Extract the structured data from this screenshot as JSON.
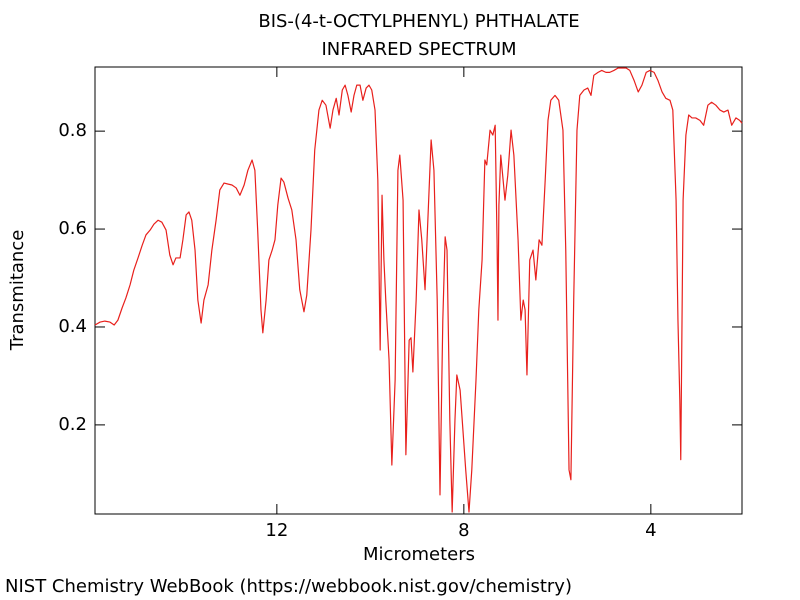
{
  "chart_data": {
    "type": "line",
    "title": "BIS-(4-t-OCTYLPHENYL) PHTHALATE",
    "subtitle": "INFRARED SPECTRUM",
    "xlabel": "Micrometers",
    "ylabel": "Transmitance",
    "source": "NIST Chemistry WebBook (https://webbook.nist.gov/chemistry)",
    "color": "#e8201c",
    "xlim": [
      15.89,
      2.05
    ],
    "ylim": [
      0.018,
      0.931
    ],
    "xticks": [
      12,
      8,
      4
    ],
    "yticks": [
      0.2,
      0.4,
      0.6,
      0.8
    ],
    "grid": false,
    "x": [
      15.89,
      15.78,
      15.68,
      15.57,
      15.48,
      15.4,
      15.31,
      15.23,
      15.14,
      15.06,
      14.97,
      14.88,
      14.8,
      14.71,
      14.63,
      14.54,
      14.46,
      14.37,
      14.29,
      14.22,
      14.16,
      14.07,
      14.01,
      13.94,
      13.88,
      13.82,
      13.75,
      13.69,
      13.62,
      13.56,
      13.47,
      13.39,
      13.3,
      13.22,
      13.13,
      13.05,
      12.96,
      12.87,
      12.79,
      12.7,
      12.62,
      12.53,
      12.47,
      12.41,
      12.34,
      12.3,
      12.23,
      12.17,
      12.1,
      12.04,
      11.98,
      11.91,
      11.85,
      11.76,
      11.68,
      11.59,
      11.51,
      11.42,
      11.36,
      11.27,
      11.19,
      11.1,
      11.03,
      10.95,
      10.86,
      10.8,
      10.73,
      10.67,
      10.6,
      10.54,
      10.48,
      10.41,
      10.35,
      10.29,
      10.22,
      10.16,
      10.09,
      10.03,
      9.97,
      9.9,
      9.84,
      9.79,
      9.75,
      9.71,
      9.67,
      9.6,
      9.54,
      9.47,
      9.41,
      9.37,
      9.3,
      9.24,
      9.17,
      9.13,
      9.09,
      9.02,
      8.96,
      8.9,
      8.83,
      8.77,
      8.7,
      8.64,
      8.57,
      8.51,
      8.45,
      8.4,
      8.36,
      8.3,
      8.25,
      8.19,
      8.15,
      8.08,
      8.02,
      7.96,
      7.89,
      7.83,
      7.74,
      7.68,
      7.61,
      7.55,
      7.51,
      7.44,
      7.38,
      7.33,
      7.29,
      7.27,
      7.25,
      7.21,
      7.16,
      7.12,
      7.06,
      6.99,
      6.93,
      6.84,
      6.78,
      6.73,
      6.69,
      6.65,
      6.59,
      6.52,
      6.46,
      6.39,
      6.33,
      6.26,
      6.2,
      6.14,
      6.05,
      5.97,
      5.88,
      5.82,
      5.75,
      5.71,
      5.65,
      5.58,
      5.52,
      5.43,
      5.35,
      5.28,
      5.22,
      5.13,
      5.05,
      4.96,
      4.88,
      4.79,
      4.7,
      4.62,
      4.53,
      4.45,
      4.36,
      4.27,
      4.19,
      4.1,
      4.02,
      3.93,
      3.85,
      3.76,
      3.68,
      3.59,
      3.53,
      3.46,
      3.42,
      3.38,
      3.36,
      3.31,
      3.25,
      3.19,
      3.12,
      3.04,
      2.95,
      2.87,
      2.78,
      2.7,
      2.61,
      2.52,
      2.44,
      2.35,
      2.27,
      2.18,
      2.1,
      2.05
    ],
    "values": [
      0.404,
      0.41,
      0.412,
      0.41,
      0.404,
      0.414,
      0.439,
      0.459,
      0.486,
      0.516,
      0.541,
      0.567,
      0.588,
      0.598,
      0.61,
      0.618,
      0.614,
      0.598,
      0.547,
      0.527,
      0.541,
      0.541,
      0.578,
      0.629,
      0.635,
      0.618,
      0.557,
      0.455,
      0.408,
      0.455,
      0.486,
      0.557,
      0.618,
      0.68,
      0.694,
      0.692,
      0.69,
      0.684,
      0.669,
      0.69,
      0.72,
      0.741,
      0.72,
      0.598,
      0.435,
      0.388,
      0.455,
      0.537,
      0.557,
      0.578,
      0.649,
      0.704,
      0.696,
      0.663,
      0.639,
      0.578,
      0.476,
      0.431,
      0.465,
      0.598,
      0.761,
      0.843,
      0.863,
      0.853,
      0.806,
      0.843,
      0.867,
      0.833,
      0.884,
      0.894,
      0.873,
      0.839,
      0.873,
      0.894,
      0.894,
      0.863,
      0.888,
      0.894,
      0.884,
      0.843,
      0.7,
      0.353,
      0.669,
      0.537,
      0.455,
      0.333,
      0.118,
      0.292,
      0.72,
      0.751,
      0.659,
      0.139,
      0.373,
      0.378,
      0.308,
      0.455,
      0.639,
      0.578,
      0.476,
      0.618,
      0.782,
      0.72,
      0.455,
      0.057,
      0.414,
      0.584,
      0.557,
      0.21,
      0.022,
      0.21,
      0.302,
      0.271,
      0.19,
      0.108,
      0.022,
      0.108,
      0.292,
      0.435,
      0.537,
      0.741,
      0.731,
      0.802,
      0.792,
      0.812,
      0.578,
      0.414,
      0.649,
      0.751,
      0.7,
      0.659,
      0.71,
      0.802,
      0.751,
      0.578,
      0.414,
      0.455,
      0.435,
      0.302,
      0.537,
      0.557,
      0.496,
      0.578,
      0.567,
      0.7,
      0.822,
      0.863,
      0.873,
      0.863,
      0.802,
      0.557,
      0.108,
      0.088,
      0.455,
      0.802,
      0.873,
      0.884,
      0.888,
      0.873,
      0.914,
      0.92,
      0.924,
      0.92,
      0.92,
      0.924,
      0.929,
      0.929,
      0.929,
      0.924,
      0.904,
      0.88,
      0.894,
      0.92,
      0.924,
      0.92,
      0.904,
      0.88,
      0.867,
      0.863,
      0.843,
      0.659,
      0.414,
      0.251,
      0.129,
      0.659,
      0.792,
      0.833,
      0.827,
      0.827,
      0.822,
      0.812,
      0.853,
      0.859,
      0.853,
      0.843,
      0.839,
      0.843,
      0.812,
      0.827,
      0.822,
      0.816
    ]
  }
}
